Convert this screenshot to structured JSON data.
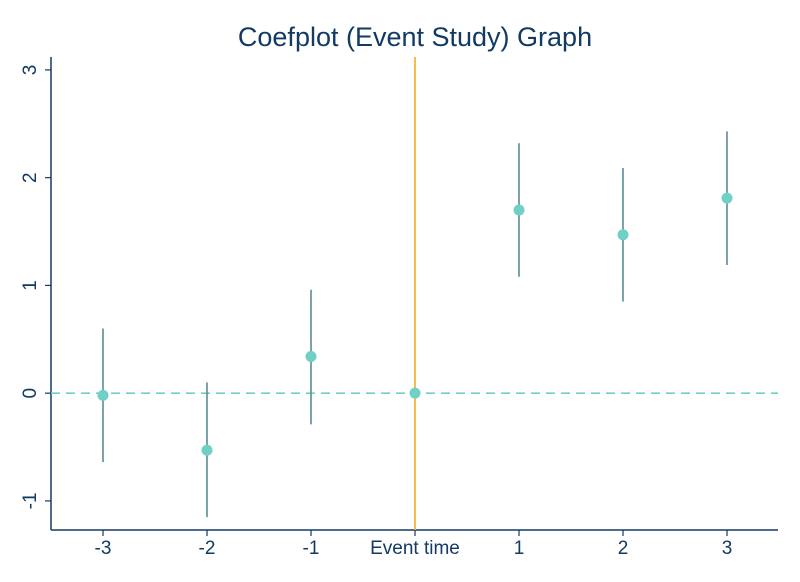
{
  "chart_data": {
    "type": "scatter",
    "title": "Coefplot (Event Study) Graph",
    "xlabel": "",
    "ylabel": "",
    "categories": [
      "-3",
      "-2",
      "-1",
      "Event time",
      "1",
      "2",
      "3"
    ],
    "points": [
      {
        "x": "-3",
        "estimate": -0.02,
        "ci_low": -0.64,
        "ci_high": 0.6
      },
      {
        "x": "-2",
        "estimate": -0.53,
        "ci_low": -1.15,
        "ci_high": 0.1
      },
      {
        "x": "-1",
        "estimate": 0.34,
        "ci_low": -0.29,
        "ci_high": 0.96
      },
      {
        "x": "Event time",
        "estimate": 0.0,
        "ci_low": 0.0,
        "ci_high": 0.0
      },
      {
        "x": "1",
        "estimate": 1.7,
        "ci_low": 1.08,
        "ci_high": 2.32
      },
      {
        "x": "2",
        "estimate": 1.47,
        "ci_low": 0.85,
        "ci_high": 2.09
      },
      {
        "x": "3",
        "estimate": 1.81,
        "ci_low": 1.19,
        "ci_high": 2.43
      }
    ],
    "yticks": [
      -1,
      0,
      1,
      2,
      3
    ],
    "ylim": [
      -1.27,
      3.12
    ],
    "reference_lines": {
      "horizontal_y": 0,
      "vertical_at": "Event time"
    },
    "grid": false,
    "colors": {
      "marker": "#6fd0c5",
      "ci_line": "#5f8a95",
      "zero_line": "#6fd0c5",
      "event_line": "#f0b83a",
      "axis": "#123a63",
      "text": "#123a63"
    }
  }
}
